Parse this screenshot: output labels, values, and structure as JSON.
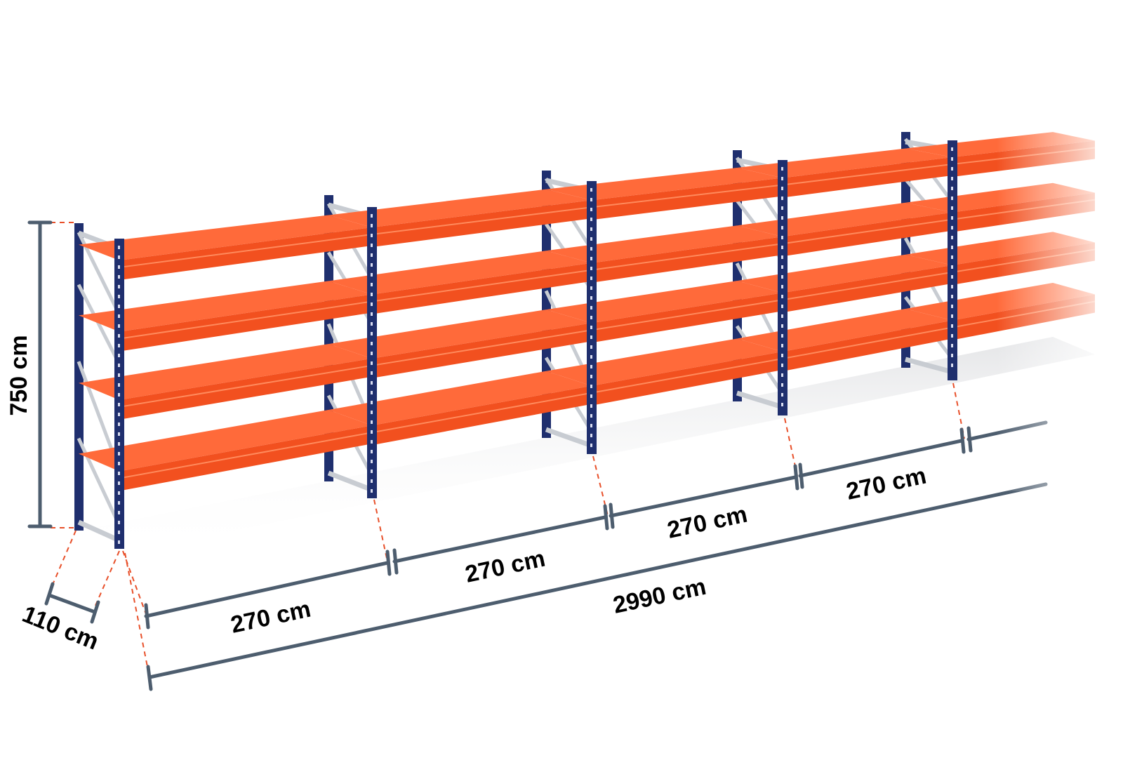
{
  "diagram": {
    "height_label": "750 cm",
    "depth_label": "110 cm",
    "bay_labels": [
      "270 cm",
      "270 cm",
      "270 cm",
      "270 cm"
    ],
    "total_length_label": "2990 cm",
    "shelf_levels": 4,
    "colors": {
      "upright": "#1f2f6e",
      "shelf": "#ff6a3a",
      "shelf_dark": "#f2501f",
      "brace": "#c8ccd2",
      "dimension": "#4d5d6e",
      "guide": "#e8502a"
    }
  }
}
